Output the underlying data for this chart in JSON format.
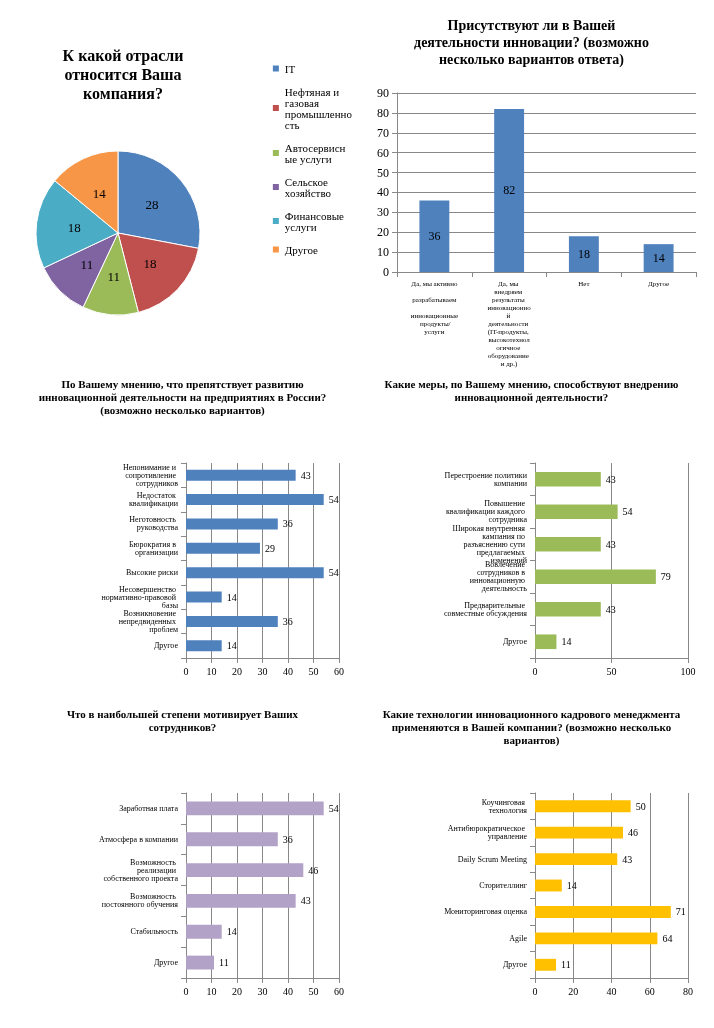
{
  "chart_data": [
    {
      "type": "pie",
      "title": "К какой отрасли относится Ваша компания?",
      "categories": [
        "IT",
        "Нефтяная и газовая промышленность",
        "Автосервисные услуги",
        "Сельское хозяйство",
        "Финансовые услуги",
        "Другое"
      ],
      "values": [
        28,
        18,
        11,
        11,
        18,
        14
      ],
      "colors": [
        "#4f81bd",
        "#c0504d",
        "#9bbb59",
        "#8064a2",
        "#4bacc6",
        "#f79646"
      ],
      "data_labels": true,
      "legend": "right"
    },
    {
      "type": "bar",
      "title": "Присутствуют ли в Вашей деятельности инновации? (возможно несколько вариантов ответа)",
      "categories": [
        "Да, мы активно разрабатываем инновационные продукты/услуги",
        "Да, мы внедряем результаты инновационной деятельности (IT-продукты, высокотехнологичное оборудование и др.)",
        "Нет",
        "Другое"
      ],
      "values": [
        36,
        82,
        18,
        14
      ],
      "color": "#4f81bd",
      "ylim": [
        0,
        90
      ],
      "yticks": [
        0,
        10,
        20,
        30,
        40,
        50,
        60,
        70,
        80,
        90
      ],
      "grid": "y",
      "data_labels": true
    },
    {
      "type": "bar",
      "orientation": "horizontal",
      "title": "По Вашему мнению, что препятствует развитию инновационной деятельности на предприятиях в России? (возможно несколько вариантов)",
      "categories": [
        "Непонимание и сопротивление сотрудников",
        "Недостаток квалификации",
        "Неготовность руководства",
        "Бюрократия в организации",
        "Высокие риски",
        "Несовершенство нормативно-правовой базы",
        "Возникновение непредвиденных проблем",
        "Другое"
      ],
      "values": [
        43,
        54,
        36,
        29,
        54,
        14,
        36,
        14
      ],
      "color": "#4f81bd",
      "xlim": [
        0,
        60
      ],
      "xticks": [
        0,
        10,
        20,
        30,
        40,
        50,
        60
      ],
      "grid": "x",
      "data_labels": true
    },
    {
      "type": "bar",
      "orientation": "horizontal",
      "title": "Какие меры, по Вашему мнению, способствуют внедрению инновационной деятельности?",
      "categories": [
        "Перестроение политики компании",
        "Повышение квалификации каждого сотрудника",
        "Широкая внутренняя кампания по разъяснению сути предлагаемых изменений",
        "Вовлечение сотрудников в инновационную деятельность",
        "Предварительные совместные обсуждения",
        "Другое"
      ],
      "values": [
        43,
        54,
        43,
        79,
        43,
        14
      ],
      "color": "#9bbb59",
      "xlim": [
        0,
        100
      ],
      "xticks": [
        0,
        50,
        100
      ],
      "grid": "x",
      "data_labels": true
    },
    {
      "type": "bar",
      "orientation": "horizontal",
      "title": "Что в наибольшей степени мотивирует Ваших сотрудников?",
      "categories": [
        "Заработная плата",
        "Атмосфера в компании",
        "Возможность реализации собственного проекта",
        "Возможность постоянного обучения",
        "Стабильность",
        "Другое"
      ],
      "values": [
        54,
        36,
        46,
        43,
        14,
        11
      ],
      "color": "#b3a2c7",
      "xlim": [
        0,
        60
      ],
      "xticks": [
        0,
        10,
        20,
        30,
        40,
        50,
        60
      ],
      "grid": "x",
      "data_labels": true
    },
    {
      "type": "bar",
      "orientation": "horizontal",
      "title": "Какие технологии инновационного кадрового менеджмента применяются в Вашей компании? (возможно несколько вариантов)",
      "categories": [
        "Коучинговая технология",
        "Антибюрократическое управление",
        "Daily Scrum Meeting",
        "Сторителлинг",
        "Мониторинговая оценка",
        "Agile",
        "Другое"
      ],
      "values": [
        50,
        46,
        43,
        14,
        71,
        64,
        11
      ],
      "color": "#ffc000",
      "xlim": [
        0,
        80
      ],
      "xticks": [
        0,
        20,
        40,
        60,
        80
      ],
      "grid": "x",
      "data_labels": true
    }
  ]
}
